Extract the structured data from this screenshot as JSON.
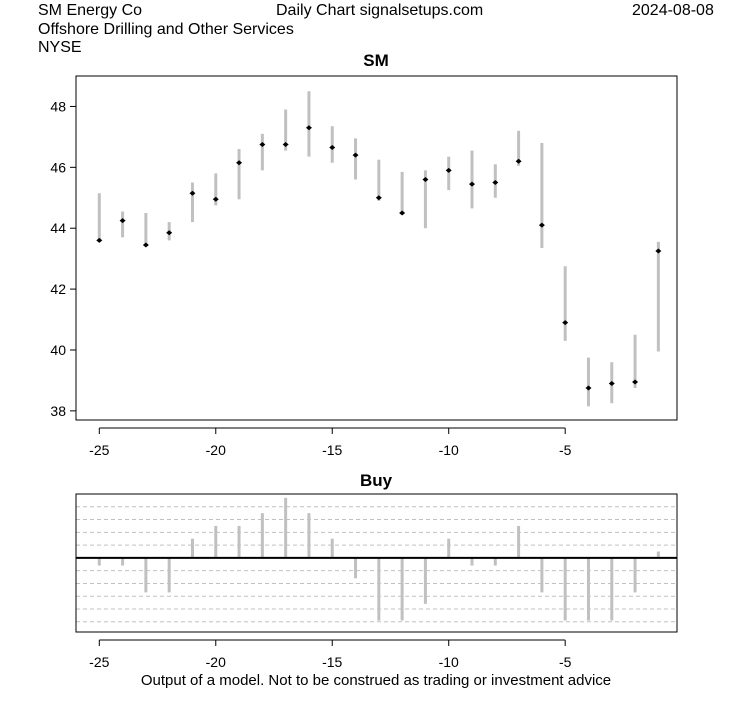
{
  "header": {
    "company": "SM Energy Co",
    "chart_label": "Daily Chart signalsetups.com",
    "date": "2024-08-08",
    "industry": "Offshore Drilling and Other Services",
    "exchange": "NYSE"
  },
  "footer": {
    "disclaimer": "Output of a model. Not to be construed as trading or investment advice"
  },
  "colors": {
    "range_bar": "#c0c0c0",
    "close_marker": "#000000",
    "grid_dash": "#c0c0c0",
    "zero_line": "#000000"
  },
  "chart_data": [
    {
      "type": "range",
      "title": "SM",
      "xlim": [
        -26,
        -0.2
      ],
      "ylim": [
        37.7,
        49.0
      ],
      "x_ticks": [
        -25,
        -20,
        -15,
        -10,
        -5
      ],
      "y_ticks": [
        38,
        40,
        42,
        44,
        46,
        48
      ],
      "points": [
        {
          "x": -25,
          "low": 43.55,
          "high": 45.15,
          "close": 43.6
        },
        {
          "x": -24,
          "low": 43.7,
          "high": 44.55,
          "close": 44.25
        },
        {
          "x": -23,
          "low": 43.4,
          "high": 44.5,
          "close": 43.45
        },
        {
          "x": -22,
          "low": 43.6,
          "high": 44.2,
          "close": 43.85
        },
        {
          "x": -21,
          "low": 44.2,
          "high": 45.5,
          "close": 45.15
        },
        {
          "x": -20,
          "low": 44.75,
          "high": 45.8,
          "close": 44.95
        },
        {
          "x": -19,
          "low": 44.95,
          "high": 46.6,
          "close": 46.15
        },
        {
          "x": -18,
          "low": 45.9,
          "high": 47.1,
          "close": 46.75
        },
        {
          "x": -17,
          "low": 46.55,
          "high": 47.9,
          "close": 46.75
        },
        {
          "x": -16,
          "low": 46.35,
          "high": 48.5,
          "close": 47.3
        },
        {
          "x": -15,
          "low": 46.15,
          "high": 47.35,
          "close": 46.65
        },
        {
          "x": -14,
          "low": 45.6,
          "high": 46.95,
          "close": 46.4
        },
        {
          "x": -13,
          "low": 44.9,
          "high": 46.25,
          "close": 45.0
        },
        {
          "x": -12,
          "low": 44.45,
          "high": 45.85,
          "close": 44.5
        },
        {
          "x": -11,
          "low": 44.0,
          "high": 45.9,
          "close": 45.6
        },
        {
          "x": -10,
          "low": 45.25,
          "high": 46.35,
          "close": 45.9
        },
        {
          "x": -9,
          "low": 44.65,
          "high": 46.55,
          "close": 45.45
        },
        {
          "x": -8,
          "low": 45.0,
          "high": 46.1,
          "close": 45.5
        },
        {
          "x": -7,
          "low": 46.05,
          "high": 47.2,
          "close": 46.2
        },
        {
          "x": -6,
          "low": 43.35,
          "high": 46.8,
          "close": 44.1
        },
        {
          "x": -5,
          "low": 40.3,
          "high": 42.75,
          "close": 40.9
        },
        {
          "x": -4,
          "low": 38.15,
          "high": 39.75,
          "close": 38.75
        },
        {
          "x": -3,
          "low": 38.25,
          "high": 39.6,
          "close": 38.9
        },
        {
          "x": -2,
          "low": 38.75,
          "high": 40.5,
          "close": 38.95
        },
        {
          "x": -1,
          "low": 39.95,
          "high": 43.55,
          "close": 43.25
        }
      ]
    },
    {
      "type": "bar",
      "title": "Buy",
      "xlim": [
        -26,
        -0.2
      ],
      "ylim": [
        -2.9,
        2.5
      ],
      "x_ticks": [
        -25,
        -20,
        -15,
        -10,
        -5
      ],
      "grid_levels": [
        -2.5,
        -2.0,
        -1.5,
        -1.0,
        -0.5,
        0.5,
        1.0,
        1.5,
        2.0
      ],
      "x": [
        -25,
        -24,
        -23,
        -22,
        -21,
        -20,
        -19,
        -18,
        -17,
        -16,
        -15,
        -14,
        -13,
        -12,
        -11,
        -10,
        -9,
        -8,
        -7,
        -6,
        -5,
        -4,
        -3,
        -2,
        -1
      ],
      "values": [
        -0.3,
        -0.3,
        -1.35,
        -1.35,
        0.75,
        1.25,
        1.25,
        1.75,
        2.35,
        1.75,
        0.75,
        -0.8,
        -2.45,
        -2.45,
        -1.8,
        0.75,
        -0.3,
        -0.3,
        1.25,
        -1.35,
        -2.45,
        -2.45,
        -2.45,
        -1.35,
        0.25
      ]
    }
  ]
}
